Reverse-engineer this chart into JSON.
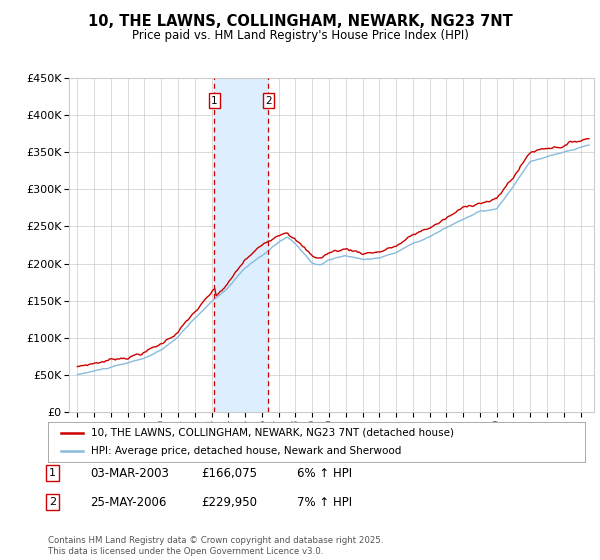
{
  "title": "10, THE LAWNS, COLLINGHAM, NEWARK, NG23 7NT",
  "subtitle": "Price paid vs. HM Land Registry's House Price Index (HPI)",
  "legend_line1": "10, THE LAWNS, COLLINGHAM, NEWARK, NG23 7NT (detached house)",
  "legend_line2": "HPI: Average price, detached house, Newark and Sherwood",
  "footer": "Contains HM Land Registry data © Crown copyright and database right 2025.\nThis data is licensed under the Open Government Licence v3.0.",
  "transactions": [
    {
      "num": 1,
      "date": "03-MAR-2003",
      "price": 166075,
      "pct": "6%",
      "dir": "↑"
    },
    {
      "num": 2,
      "date": "25-MAY-2006",
      "price": 229950,
      "pct": "7%",
      "dir": "↑"
    }
  ],
  "transaction_dates_decimal": [
    2003.17,
    2006.39
  ],
  "red_color": "#cc0000",
  "blue_color": "#88bbdd",
  "shade_color": "#ddeeff",
  "grid_color": "#cccccc",
  "background_color": "#ffffff",
  "ylim": [
    0,
    450000
  ],
  "xlim_start": 1994.5,
  "xlim_end": 2025.8,
  "yticks": [
    0,
    50000,
    100000,
    150000,
    200000,
    250000,
    300000,
    350000,
    400000,
    450000
  ],
  "ytick_labels": [
    "£0",
    "£50K",
    "£100K",
    "£150K",
    "£200K",
    "£250K",
    "£300K",
    "£350K",
    "£400K",
    "£450K"
  ]
}
